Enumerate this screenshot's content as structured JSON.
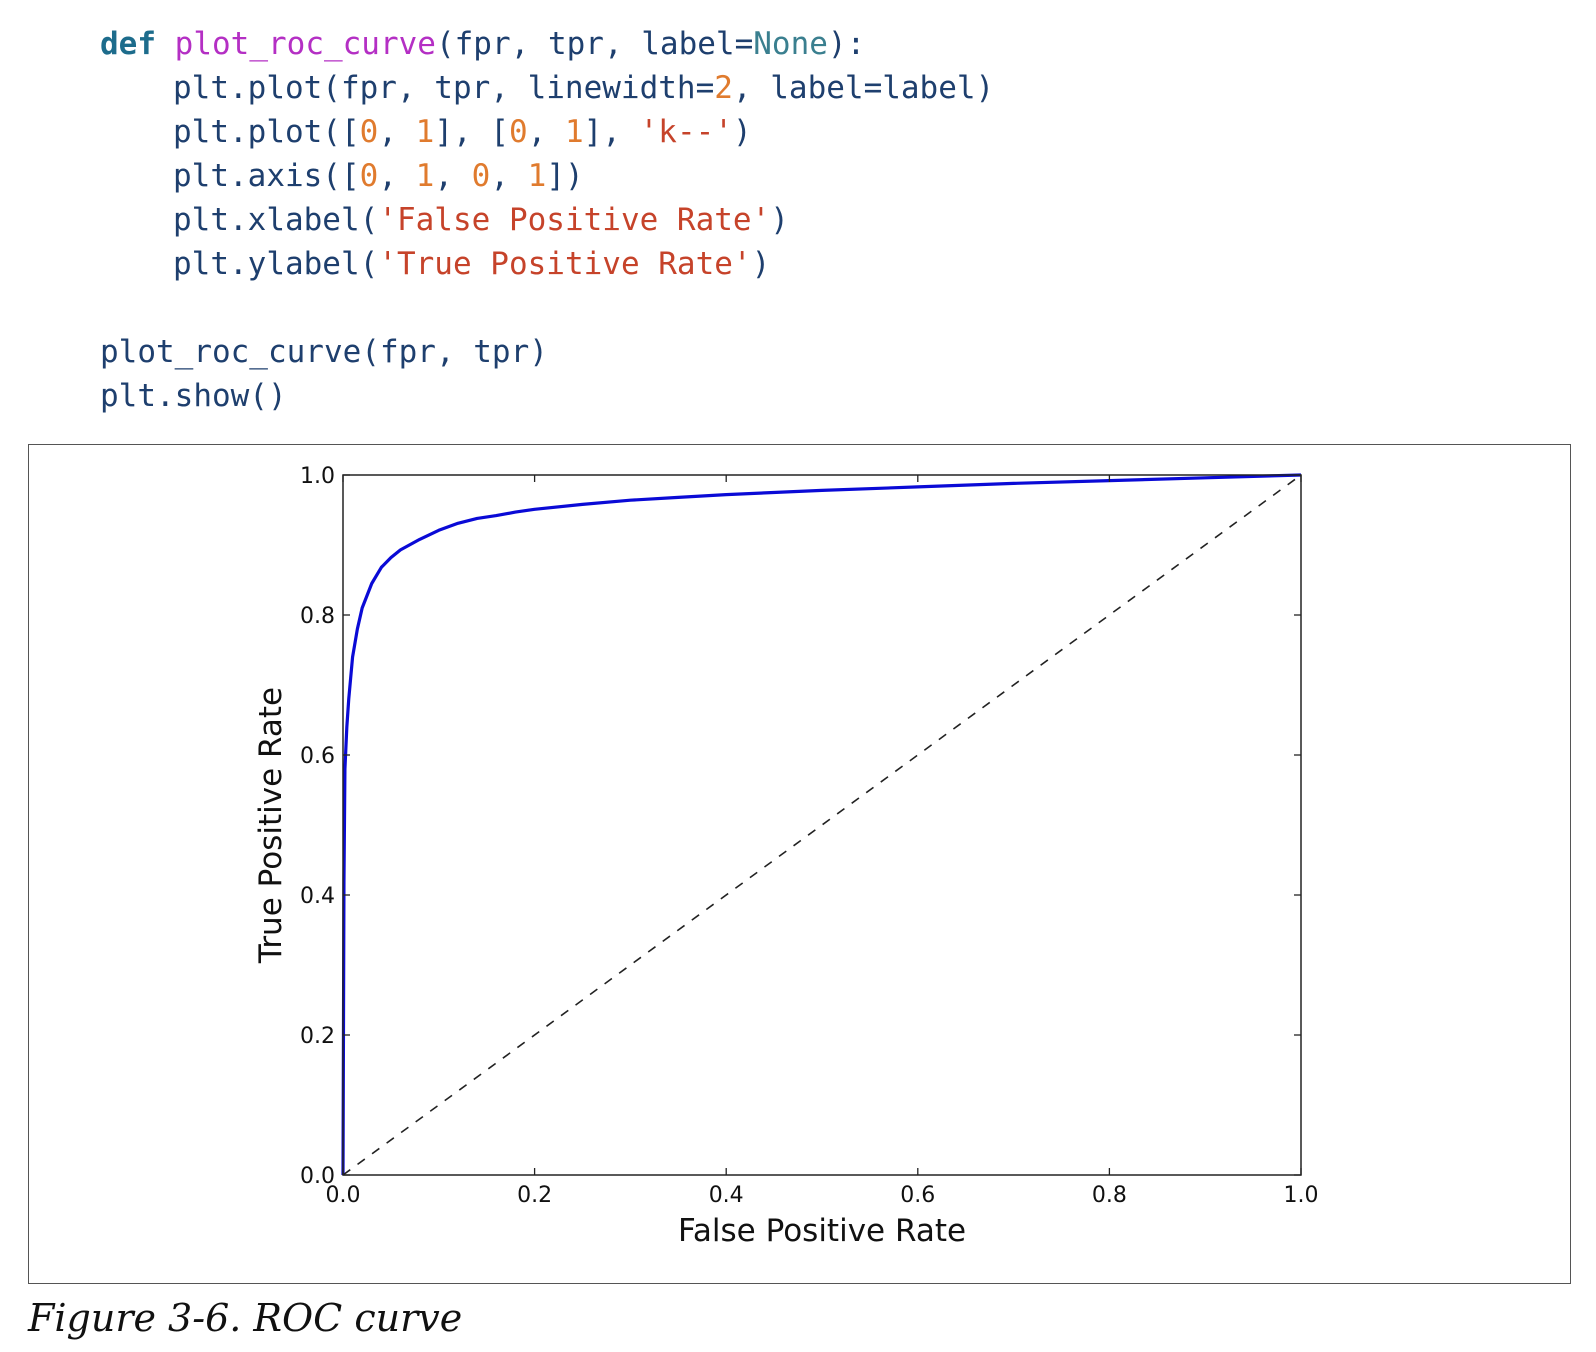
{
  "code": {
    "def_kw": "def",
    "fn_name": "plot_roc_curve",
    "def_args_a": "(fpr, tpr, label=",
    "def_none": "None",
    "def_args_b": "):",
    "l2_a": "plt.plot(fpr, tpr, linewidth=",
    "l2_num": "2",
    "l2_b": ", label=label)",
    "l3_a": "plt.plot([",
    "l3_n0": "0",
    "l3_c1": ", ",
    "l3_n1": "1",
    "l3_c2": "], [",
    "l3_n2": "0",
    "l3_c3": ", ",
    "l3_n3": "1",
    "l3_c4": "], ",
    "l3_str": "'k--'",
    "l3_end": ")",
    "l4_a": "plt.axis([",
    "l4_n0": "0",
    "l4_c1": ", ",
    "l4_n1": "1",
    "l4_c2": ", ",
    "l4_n2": "0",
    "l4_c3": ", ",
    "l4_n3": "1",
    "l4_end": "])",
    "l5_a": "plt.xlabel(",
    "l5_str": "'False Positive Rate'",
    "l5_end": ")",
    "l6_a": "plt.ylabel(",
    "l6_str": "'True Positive Rate'",
    "l6_end": ")",
    "call_line": "plot_roc_curve(fpr, tpr)",
    "show_line": "plt.show()"
  },
  "caption": "Figure 3-6. ROC curve",
  "colors": {
    "roc_line": "#0a0ad6",
    "diagonal": "#222222"
  },
  "chart_data": {
    "type": "line",
    "xlabel": "False Positive Rate",
    "ylabel": "True Positive Rate",
    "xlim": [
      0.0,
      1.0
    ],
    "ylim": [
      0.0,
      1.0
    ],
    "x_ticks": [
      "0.0",
      "0.2",
      "0.4",
      "0.6",
      "0.8",
      "1.0"
    ],
    "y_ticks": [
      "0.0",
      "0.2",
      "0.4",
      "0.6",
      "0.8",
      "1.0"
    ],
    "grid": false,
    "series": [
      {
        "style": "solid",
        "x": [
          0.0,
          0.001,
          0.002,
          0.004,
          0.006,
          0.008,
          0.01,
          0.015,
          0.02,
          0.03,
          0.04,
          0.05,
          0.06,
          0.08,
          0.1,
          0.12,
          0.14,
          0.16,
          0.18,
          0.2,
          0.25,
          0.3,
          0.35,
          0.4,
          0.5,
          0.6,
          0.7,
          0.8,
          0.9,
          1.0
        ],
        "y": [
          0.0,
          0.42,
          0.58,
          0.64,
          0.68,
          0.71,
          0.74,
          0.78,
          0.81,
          0.845,
          0.868,
          0.882,
          0.893,
          0.908,
          0.921,
          0.931,
          0.938,
          0.942,
          0.947,
          0.951,
          0.958,
          0.964,
          0.968,
          0.972,
          0.978,
          0.983,
          0.988,
          0.992,
          0.996,
          1.0
        ]
      },
      {
        "style": "dashed",
        "x": [
          0.0,
          1.0
        ],
        "y": [
          0.0,
          1.0
        ]
      }
    ]
  }
}
